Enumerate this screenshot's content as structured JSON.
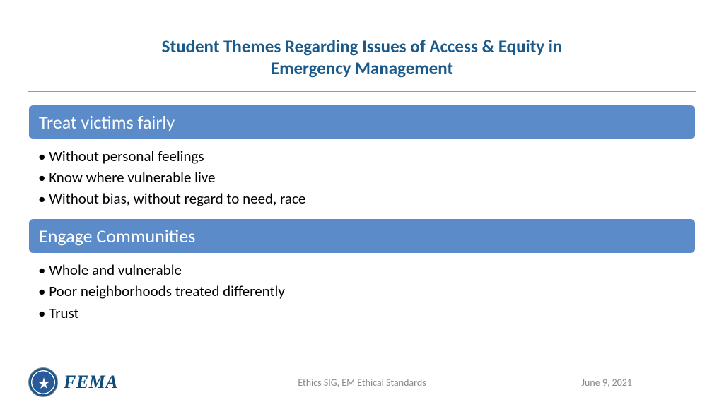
{
  "title_line1": "Student Themes Regarding Issues of Access & Equity in",
  "title_line2": "Emergency Management",
  "colors": {
    "title": "#1a5a8a",
    "header_bg": "#5b8bc8",
    "header_text": "#ffffff",
    "bullet_text": "#000000",
    "footer_text": "#8a8a8a",
    "hr": "#999999"
  },
  "themes": [
    {
      "header": "Treat victims fairly",
      "bullets": [
        "Without personal feelings",
        "Know where vulnerable live",
        "Without bias, without regard to need, race"
      ]
    },
    {
      "header": "Engage Communities",
      "bullets": [
        "Whole and vulnerable",
        "Poor neighborhoods treated differently",
        "Trust"
      ]
    }
  ],
  "logo_text": "FEMA",
  "footer_center": "Ethics SIG, EM Ethical Standards",
  "footer_date": "June 9, 2021"
}
